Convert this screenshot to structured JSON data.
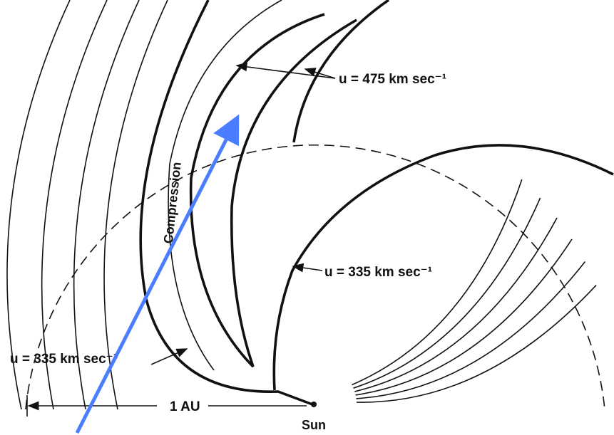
{
  "labels": {
    "fast_wind": "u = 475 km sec⁻¹",
    "compression": "Compression",
    "slow_wind_right": "u = 335 km sec⁻¹",
    "slow_wind_left": "u = 335 km sec⁻¹",
    "distance": "1 AU",
    "sun": "Sun"
  }
}
